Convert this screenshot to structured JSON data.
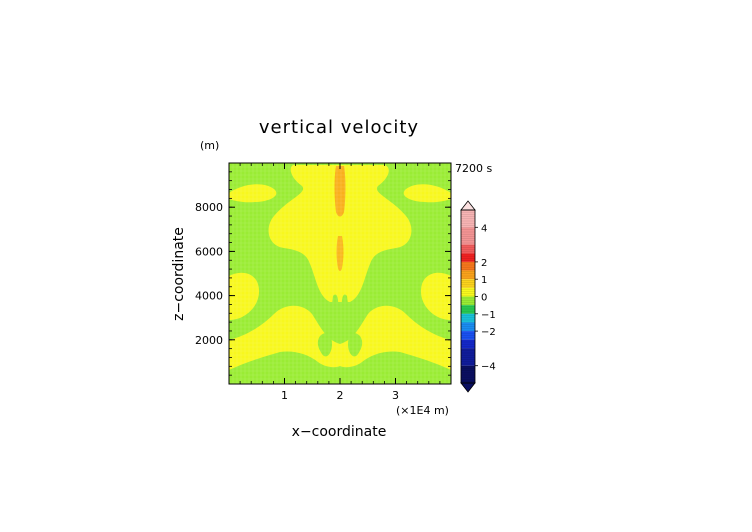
{
  "chart_data": {
    "type": "heatmap",
    "title": "vertical velocity",
    "xlabel": "x−coordinate",
    "ylabel": "z−coordinate",
    "x_unit_label": "(×1E4 m)",
    "y_unit_label": "(m)",
    "time_label": "7200 s",
    "x_range": [
      0,
      4
    ],
    "y_range": [
      0,
      10000
    ],
    "x_ticks": [
      {
        "value": 1,
        "label": "1"
      },
      {
        "value": 2,
        "label": "2"
      },
      {
        "value": 3,
        "label": "3"
      }
    ],
    "y_ticks": [
      {
        "value": 2000,
        "label": "2000"
      },
      {
        "value": 4000,
        "label": "4000"
      },
      {
        "value": 6000,
        "label": "6000"
      },
      {
        "value": 8000,
        "label": "8000"
      }
    ],
    "colorbar": {
      "ticks": [
        {
          "value": 4,
          "label": "4"
        },
        {
          "value": 2,
          "label": "2"
        },
        {
          "value": 1,
          "label": "1"
        },
        {
          "value": 0,
          "label": "0"
        },
        {
          "value": -1,
          "label": "−1"
        },
        {
          "value": -2,
          "label": "−2"
        },
        {
          "value": -4,
          "label": "−4"
        }
      ],
      "levels": [
        {
          "from": 4,
          "to": 5,
          "color": "#f7b4b4"
        },
        {
          "from": 3,
          "to": 4,
          "color": "#f39494"
        },
        {
          "from": 2.5,
          "to": 3,
          "color": "#f25c5c"
        },
        {
          "from": 2,
          "to": 2.5,
          "color": "#ef2020"
        },
        {
          "from": 1.5,
          "to": 2,
          "color": "#f5761c"
        },
        {
          "from": 1,
          "to": 1.5,
          "color": "#f9a21c"
        },
        {
          "from": 0.5,
          "to": 1,
          "color": "#fbd21c"
        },
        {
          "from": 0,
          "to": 0.5,
          "color": "#f8f81e"
        },
        {
          "from": -0.5,
          "to": 0,
          "color": "#9aec34"
        },
        {
          "from": -1,
          "to": -0.5,
          "color": "#28c850"
        },
        {
          "from": -1.5,
          "to": -1,
          "color": "#1ac0d8"
        },
        {
          "from": -2,
          "to": -1.5,
          "color": "#1a8cf0"
        },
        {
          "from": -2.5,
          "to": -2,
          "color": "#1a50f0"
        },
        {
          "from": -3,
          "to": -2.5,
          "color": "#1428c8"
        },
        {
          "from": -4,
          "to": -3,
          "color": "#101c9a"
        },
        {
          "from": -5,
          "to": -4,
          "color": "#0a0f60"
        }
      ]
    },
    "field_colors": {
      "background_level": "#9aec34",
      "positive_level": "#f8f81e",
      "jet_level": "#f9a21c"
    }
  }
}
